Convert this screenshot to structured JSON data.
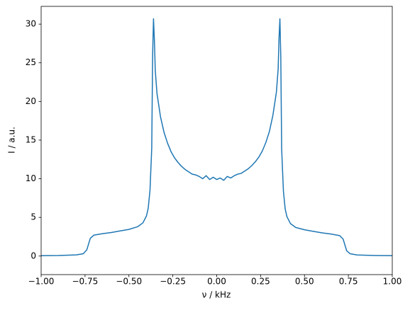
{
  "chart_data": {
    "type": "line",
    "xlabel": "ν / kHz",
    "ylabel": "I / a.u.",
    "x": [
      -1.0,
      -0.9,
      -0.8,
      -0.76,
      -0.74,
      -0.72,
      -0.7,
      -0.65,
      -0.6,
      -0.55,
      -0.5,
      -0.45,
      -0.42,
      -0.4,
      -0.39,
      -0.38,
      -0.37,
      -0.365,
      -0.36,
      -0.355,
      -0.35,
      -0.34,
      -0.32,
      -0.3,
      -0.28,
      -0.26,
      -0.24,
      -0.22,
      -0.2,
      -0.18,
      -0.16,
      -0.14,
      -0.12,
      -0.1,
      -0.08,
      -0.06,
      -0.04,
      -0.02,
      0,
      0.02,
      0.04,
      0.06,
      0.08,
      0.1,
      0.12,
      0.14,
      0.16,
      0.18,
      0.2,
      0.22,
      0.24,
      0.26,
      0.28,
      0.3,
      0.32,
      0.34,
      0.35,
      0.355,
      0.36,
      0.365,
      0.37,
      0.38,
      0.39,
      0.4,
      0.42,
      0.45,
      0.5,
      0.55,
      0.6,
      0.65,
      0.7,
      0.72,
      0.74,
      0.76,
      0.8,
      0.9,
      1.0
    ],
    "series": [
      {
        "color": "#1f77b4",
        "values": [
          0.05,
          0.07,
          0.15,
          0.3,
          0.8,
          2.3,
          2.7,
          2.9,
          3.05,
          3.25,
          3.45,
          3.8,
          4.3,
          5.2,
          6.2,
          8.5,
          14,
          26,
          30.7,
          28,
          24,
          21,
          18,
          16,
          14.6,
          13.5,
          12.7,
          12.1,
          11.6,
          11.2,
          10.9,
          10.6,
          10.5,
          10.3,
          10.0,
          10.4,
          9.9,
          10.2,
          9.9,
          10.1,
          9.8,
          10.3,
          10.1,
          10.4,
          10.6,
          10.7,
          11.0,
          11.3,
          11.7,
          12.2,
          12.8,
          13.6,
          14.7,
          16.1,
          18.2,
          21.2,
          24.2,
          28.2,
          30.7,
          25.8,
          13.8,
          8.4,
          6.1,
          5.1,
          4.2,
          3.7,
          3.4,
          3.2,
          3.0,
          2.85,
          2.65,
          2.2,
          0.7,
          0.3,
          0.14,
          0.07,
          0.05
        ]
      }
    ],
    "xlim": [
      -1.0,
      1.0
    ],
    "ylim": [
      -2.4,
      32.3
    ],
    "xticks": [
      {
        "value": -1.0,
        "label": "−1.00"
      },
      {
        "value": -0.75,
        "label": "−0.75"
      },
      {
        "value": -0.5,
        "label": "−0.50"
      },
      {
        "value": -0.25,
        "label": "−0.25"
      },
      {
        "value": 0,
        "label": "0.00"
      },
      {
        "value": 0.25,
        "label": "0.25"
      },
      {
        "value": 0.5,
        "label": "0.50"
      },
      {
        "value": 0.75,
        "label": "0.75"
      },
      {
        "value": 1.0,
        "label": "1.00"
      }
    ],
    "yticks": [
      0,
      5,
      10,
      15,
      20,
      25,
      30
    ]
  }
}
